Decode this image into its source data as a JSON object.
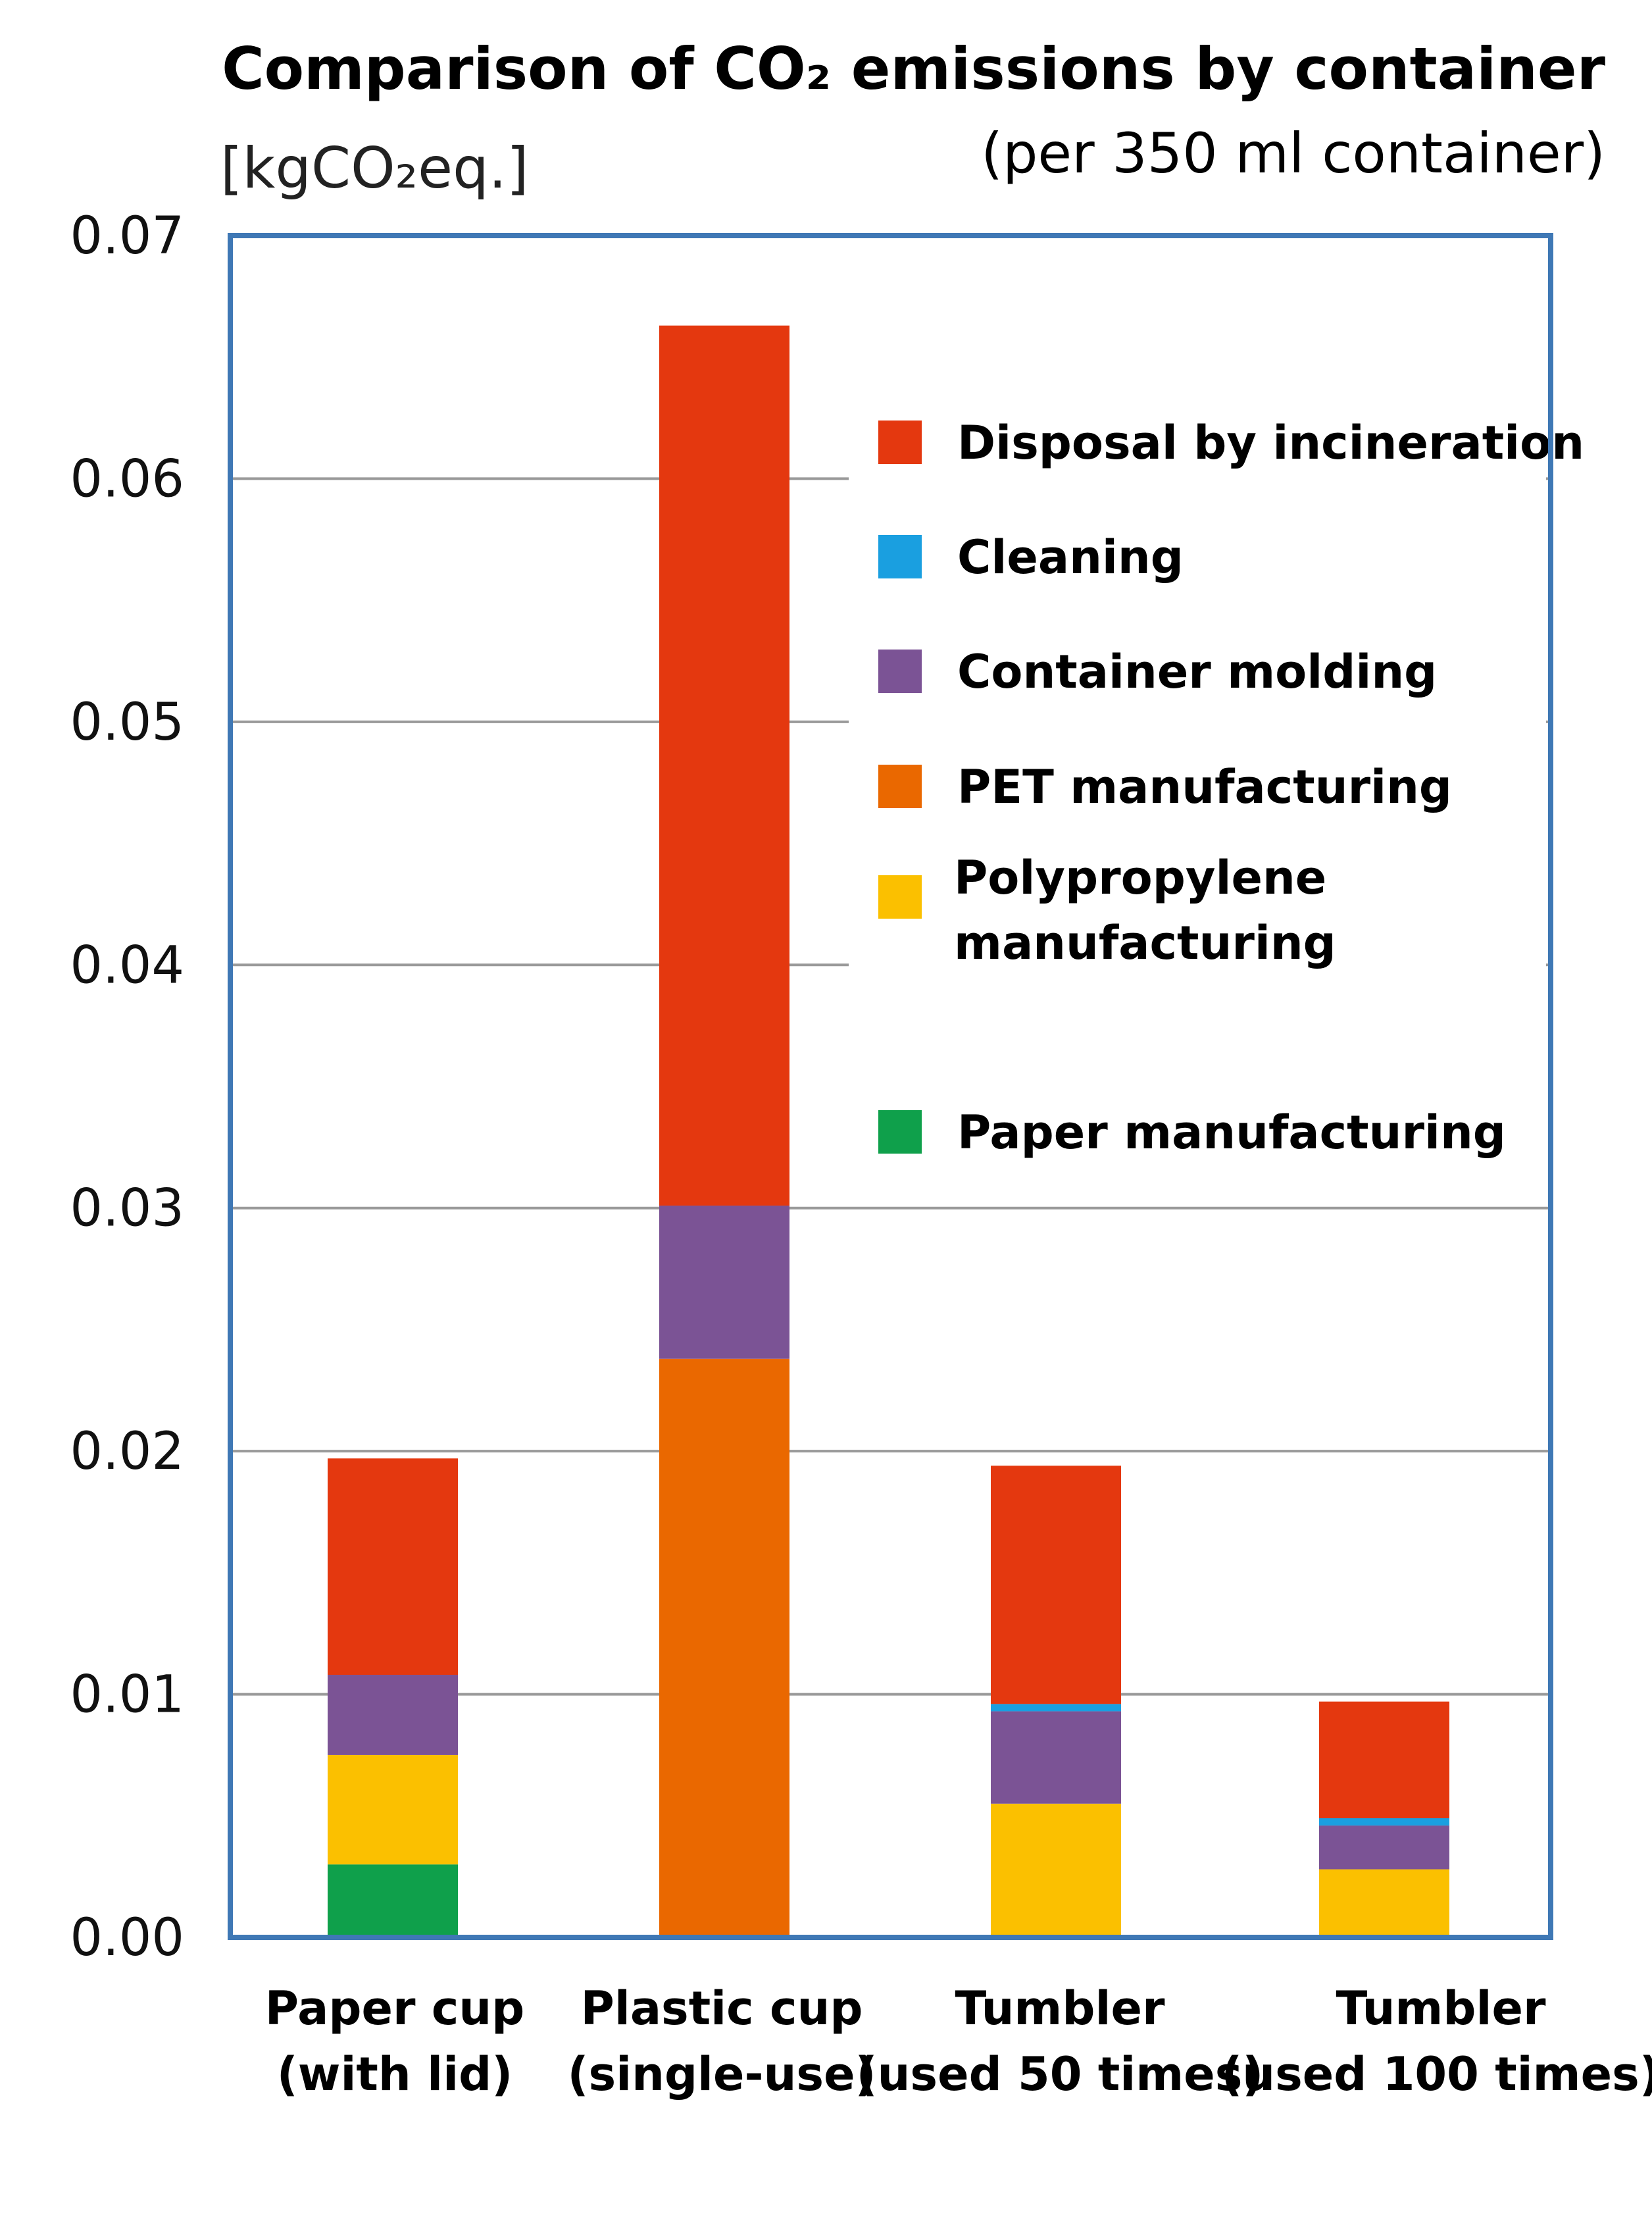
{
  "chart_data": {
    "type": "bar",
    "stacked": true,
    "title": "Comparison of CO₂ emissions by container",
    "subtitle": "(per 350 ml container)",
    "ylabel": "[kgCO₂eq.]",
    "xlabel": "",
    "ylim": [
      0,
      0.07
    ],
    "yticks": [
      "0.00",
      "0.01",
      "0.02",
      "0.03",
      "0.04",
      "0.05",
      "0.06",
      "0.07"
    ],
    "grid": true,
    "legend_position": "inside-top-right",
    "categories": [
      {
        "line1": "Paper cup",
        "line2": "(with lid)"
      },
      {
        "line1": "Plastic cup",
        "line2": "(single-use)"
      },
      {
        "line1": "Tumbler",
        "line2": "(used 50 times)"
      },
      {
        "line1": "Tumbler",
        "line2": "(used 100 times)"
      }
    ],
    "series": [
      {
        "name": "Paper manufacturing",
        "color": "#0fa04b",
        "values": [
          0.003,
          0,
          0,
          0
        ]
      },
      {
        "name": "Polypropylene manufacturing",
        "name_lines": [
          "Polypropylene",
          "manufacturing"
        ],
        "color": "#fbc000",
        "values": [
          0.0045,
          0,
          0.0055,
          0.0028
        ]
      },
      {
        "name": "PET manufacturing",
        "color": "#ea6800",
        "values": [
          0,
          0.0238,
          0,
          0
        ]
      },
      {
        "name": "Container molding",
        "color": "#7b5395",
        "values": [
          0.0033,
          0.0063,
          0.0038,
          0.0018
        ]
      },
      {
        "name": "Cleaning",
        "color": "#1a9fe0",
        "values": [
          0,
          0,
          0.0003,
          0.0003
        ]
      },
      {
        "name": "Disposal by incineration",
        "color": "#e4380f",
        "values": [
          0.0089,
          0.0362,
          0.0098,
          0.0048
        ]
      }
    ],
    "legend_order": [
      "Disposal by incineration",
      "Cleaning",
      "Container molding",
      "PET manufacturing",
      "Polypropylene manufacturing",
      "Paper manufacturing"
    ]
  }
}
